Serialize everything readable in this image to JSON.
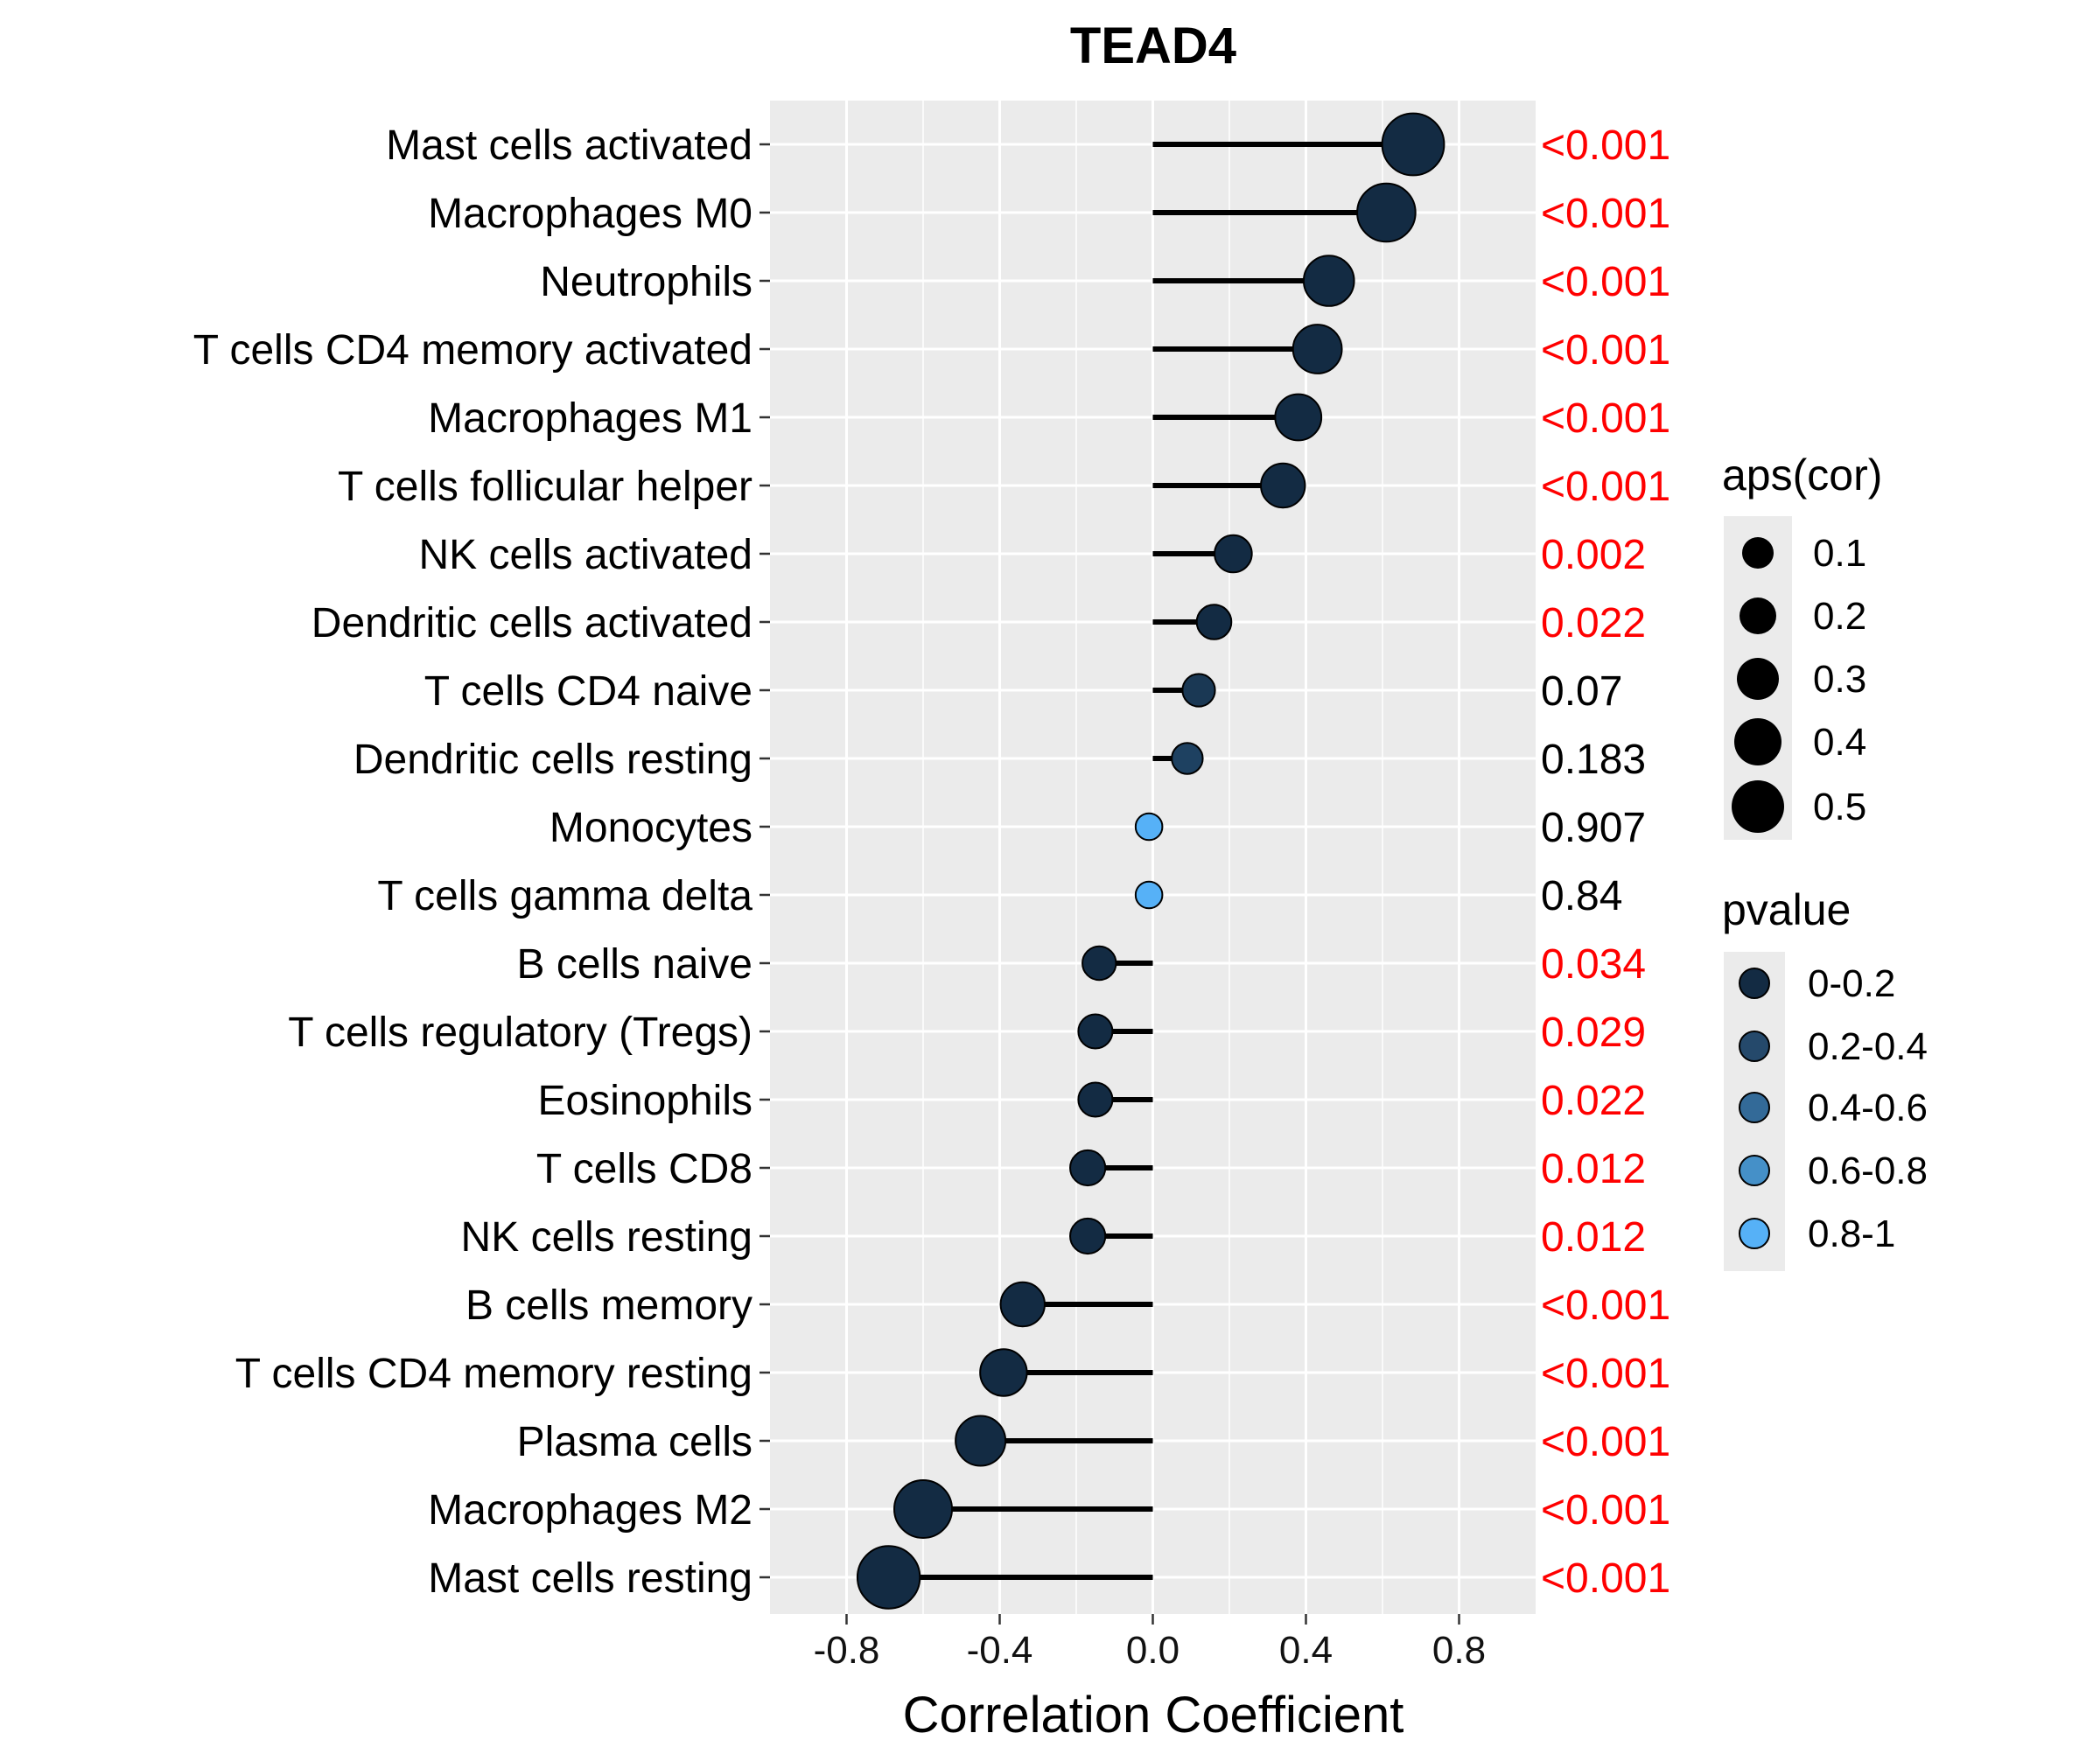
{
  "chart_data": {
    "type": "lollipop",
    "title": "TEAD4",
    "xlabel": "Correlation Coefficient",
    "ylabel": "",
    "xlim": [
      -1.0,
      1.0
    ],
    "xticks": [
      -0.8,
      -0.4,
      0.0,
      0.4,
      0.8
    ],
    "xtick_labels": [
      "-0.8",
      "-0.4",
      "0.0",
      "0.4",
      "0.8"
    ],
    "grid": true,
    "categories": [
      "Mast cells activated",
      "Macrophages M0",
      "Neutrophils",
      "T cells CD4 memory activated",
      "Macrophages M1",
      "T cells follicular helper",
      "NK cells activated",
      "Dendritic cells activated",
      "T cells CD4 naive",
      "Dendritic cells resting",
      "Monocytes",
      "T cells gamma delta",
      "B cells naive",
      "T cells regulatory (Tregs)",
      "Eosinophils",
      "T cells CD8",
      "NK cells resting",
      "B cells memory",
      "T cells CD4 memory resting",
      "Plasma cells",
      "Macrophages M2",
      "Mast cells resting"
    ],
    "values": [
      0.68,
      0.61,
      0.46,
      0.43,
      0.38,
      0.34,
      0.21,
      0.16,
      0.12,
      0.09,
      -0.01,
      -0.01,
      -0.14,
      -0.15,
      -0.15,
      -0.17,
      -0.17,
      -0.34,
      -0.39,
      -0.45,
      -0.6,
      -0.69
    ],
    "pvalue_labels": [
      "<0.001",
      "<0.001",
      "<0.001",
      "<0.001",
      "<0.001",
      "<0.001",
      "0.002",
      "0.022",
      "0.07",
      "0.183",
      "0.907",
      "0.84",
      "0.034",
      "0.029",
      "0.022",
      "0.012",
      "0.012",
      "<0.001",
      "<0.001",
      "<0.001",
      "<0.001",
      "<0.001"
    ],
    "pvalue_colors": [
      "#ff0000",
      "#ff0000",
      "#ff0000",
      "#ff0000",
      "#ff0000",
      "#ff0000",
      "#ff0000",
      "#ff0000",
      "#000000",
      "#000000",
      "#000000",
      "#000000",
      "#ff0000",
      "#ff0000",
      "#ff0000",
      "#ff0000",
      "#ff0000",
      "#ff0000",
      "#ff0000",
      "#ff0000",
      "#ff0000",
      "#ff0000"
    ],
    "point_colors": [
      "#132b43",
      "#132b43",
      "#132b43",
      "#132b43",
      "#132b43",
      "#132b43",
      "#132b43",
      "#132b43",
      "#1a3854",
      "#1e4161",
      "#56b1f7",
      "#56b1f7",
      "#132b43",
      "#132b43",
      "#132b43",
      "#132b43",
      "#132b43",
      "#132b43",
      "#132b43",
      "#132b43",
      "#132b43",
      "#132b43"
    ],
    "size_legend": {
      "title": "aps(cor)",
      "labels": [
        "0.1",
        "0.2",
        "0.3",
        "0.4",
        "0.5"
      ],
      "values": [
        0.1,
        0.2,
        0.3,
        0.4,
        0.5
      ]
    },
    "color_legend": {
      "title": "pvalue",
      "labels": [
        "0-0.2",
        "0.2-0.4",
        "0.4-0.6",
        "0.6-0.8",
        "0.8-1"
      ],
      "colors": [
        "#132b43",
        "#25496b",
        "#336a98",
        "#4590c8",
        "#56b1f7"
      ]
    },
    "legend_position": "right",
    "panel_background": "#ebebeb",
    "stem_color": "#000000"
  }
}
